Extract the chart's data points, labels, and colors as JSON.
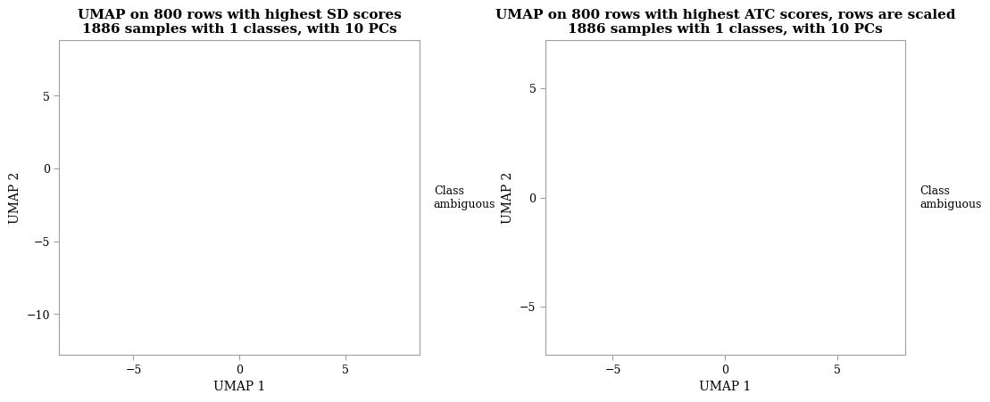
{
  "plot1_title_line1": "UMAP on 800 rows with highest SD scores",
  "plot1_title_line2": "1886 samples with 1 classes, with 10 PCs",
  "plot2_title_line1": "UMAP on 800 rows with highest ATC scores, rows are scaled",
  "plot2_title_line2": "1886 samples with 1 classes, with 10 PCs",
  "xlabel": "UMAP 1",
  "ylabel": "UMAP 2",
  "legend_text": "Class\nambiguous",
  "plot1_xlim": [
    -8.5,
    8.5
  ],
  "plot1_ylim": [
    -12.8,
    8.8
  ],
  "plot1_xticks": [
    -5,
    0,
    5
  ],
  "plot1_yticks": [
    -10,
    -5,
    0,
    5
  ],
  "plot2_xlim": [
    -8.0,
    8.0
  ],
  "plot2_ylim": [
    -7.2,
    7.2
  ],
  "plot2_xticks": [
    -5,
    0,
    5
  ],
  "plot2_yticks": [
    -5,
    0,
    5
  ],
  "background_color": "#ffffff",
  "title_fontsize": 11,
  "axis_label_fontsize": 10,
  "tick_fontsize": 9,
  "legend_fontsize": 9,
  "spine_color": "#a0a0a0"
}
